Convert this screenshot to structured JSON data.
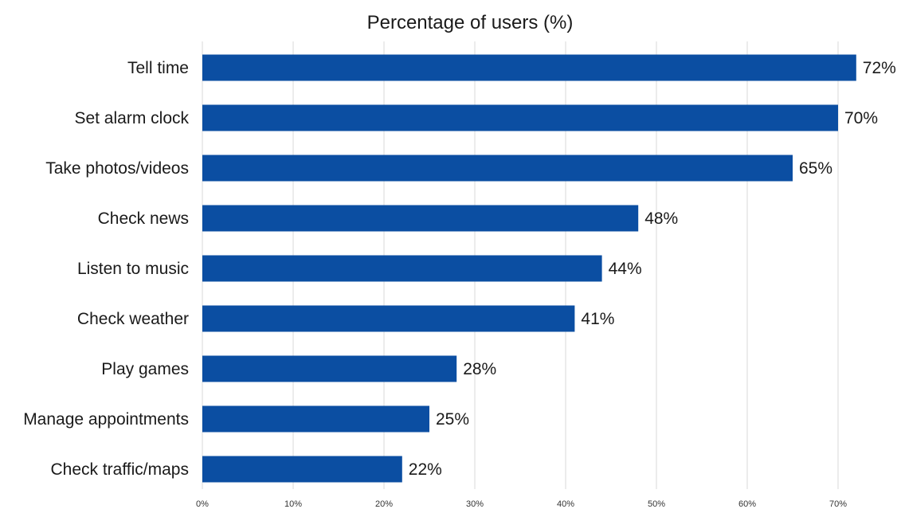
{
  "chart_data": {
    "type": "bar",
    "orientation": "horizontal",
    "title": "Percentage of users (%)",
    "categories": [
      "Tell time",
      "Set alarm clock",
      "Take photos/videos",
      "Check news",
      "Listen to music",
      "Check weather",
      "Play games",
      "Manage appointments",
      "Check traffic/maps"
    ],
    "values": [
      72,
      70,
      65,
      48,
      44,
      41,
      28,
      25,
      22
    ],
    "value_labels": [
      "72%",
      "70%",
      "65%",
      "48%",
      "44%",
      "41%",
      "28%",
      "25%",
      "22%"
    ],
    "xlim": [
      0,
      70
    ],
    "x_ticks": [
      0,
      10,
      20,
      30,
      40,
      50,
      60,
      70
    ],
    "x_tick_labels": [
      "0%",
      "10%",
      "20%",
      "30%",
      "40%",
      "50%",
      "60%",
      "70%"
    ],
    "grid": "vertical",
    "legend": "none",
    "bar_color": "#0b4ea2"
  }
}
